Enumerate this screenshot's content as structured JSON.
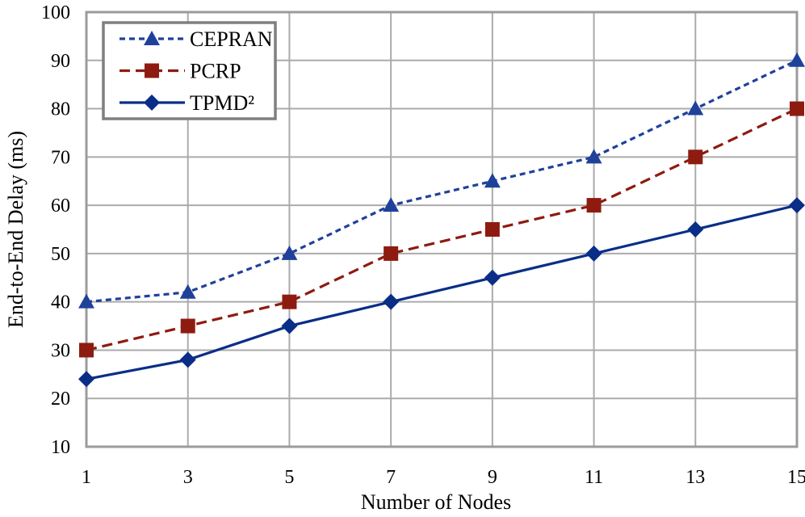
{
  "chart_data": {
    "type": "line",
    "title": "",
    "xlabel": "Number of Nodes",
    "ylabel": "End-to-End Delay (ms)",
    "x": [
      1,
      3,
      5,
      7,
      9,
      11,
      13,
      15
    ],
    "x_tick_labels": [
      "1",
      "3",
      "5",
      "7",
      "9",
      "11",
      "13",
      "15"
    ],
    "y_ticks": [
      10,
      20,
      30,
      40,
      50,
      60,
      70,
      80,
      90,
      100
    ],
    "ylim": [
      10,
      100
    ],
    "grid": "both",
    "legend_position": "top-left-inside",
    "series": [
      {
        "name": "CEPRAN",
        "values": [
          40,
          42,
          50,
          60,
          65,
          70,
          80,
          90
        ],
        "color": "#1F419A",
        "line_style": "dashed-short",
        "marker": "triangle"
      },
      {
        "name": "PCRP",
        "values": [
          30,
          35,
          40,
          50,
          55,
          60,
          70,
          80
        ],
        "color": "#8E1B10",
        "line_style": "dashed-long",
        "marker": "square"
      },
      {
        "name": "TPMD²",
        "values": [
          24,
          28,
          35,
          40,
          45,
          50,
          55,
          60
        ],
        "color": "#0A2E87",
        "line_style": "solid",
        "marker": "diamond"
      }
    ]
  },
  "style_colors": {
    "gridline": "#ABABAB",
    "plot_frame": "#9B9B9B",
    "legend_border": "#7F7F7F",
    "background": "#FFFFFF",
    "text": "#000000"
  }
}
